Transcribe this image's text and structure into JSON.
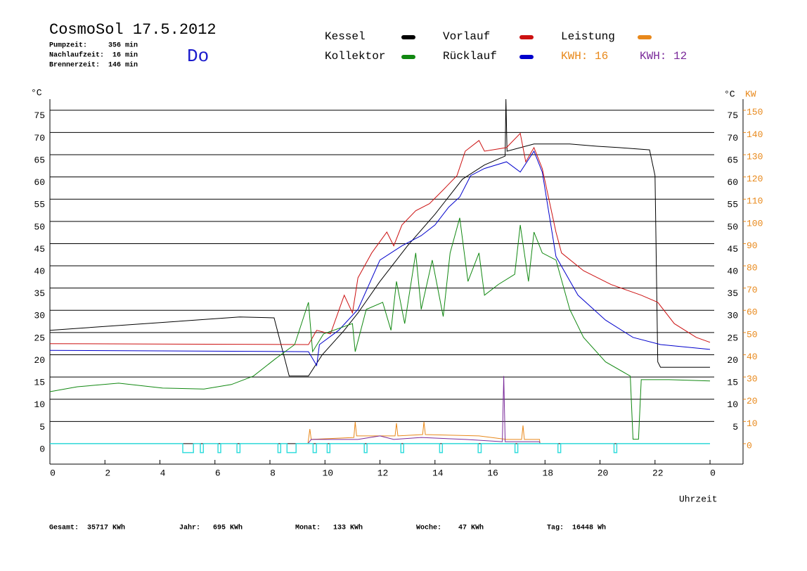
{
  "chart_data": {
    "type": "line",
    "title": "CosmoSol 17.5.2012",
    "info": [
      "Pumpzeit:     356 min",
      "Nachlaufzeit:  16 min",
      "Brennerzeit:  146 min"
    ],
    "day": "Do",
    "y_label": "°C",
    "y_right_label": "°C",
    "y2_label": "KW",
    "x_label": "Uhrzeit",
    "kwh_label": {
      "text": "KWH: 16",
      "color": "#e8881a"
    },
    "footer": [
      "Gesamt:  35717 KWh",
      "Jahr:   695 KWh",
      "Monat:   133 KWh",
      "Woche:    47 KWh",
      "Tag:  16448 Wh"
    ],
    "xlim": [
      0,
      25.2
    ],
    "xticks": [
      0,
      2,
      4,
      6,
      8,
      10,
      12,
      14,
      16,
      18,
      20,
      22,
      {
        "value": 24,
        "label": "0"
      }
    ],
    "ylim": [
      -4.6,
      77.5
    ],
    "yticks": [
      0,
      5,
      10,
      15,
      20,
      25,
      30,
      35,
      40,
      45,
      50,
      55,
      60,
      65,
      70,
      75
    ],
    "y_right_ticks": [
      5,
      10,
      15,
      20,
      25,
      30,
      35,
      40,
      45,
      50,
      55,
      60,
      65,
      70,
      75
    ],
    "y2lim": [
      -9.2,
      155
    ],
    "y2ticks": [
      0,
      10,
      20,
      30,
      40,
      50,
      60,
      70,
      80,
      90,
      100,
      110,
      120,
      130,
      140,
      150
    ],
    "grid": true,
    "series": [
      {
        "name": "Kessel",
        "color": "#000000",
        "x": [
          0,
          6.9,
          8.15,
          8.7,
          9.4,
          9.9,
          10.7,
          11.2,
          12,
          13,
          14,
          15,
          15.8,
          16.55,
          16.58,
          16.62,
          17.6,
          18.9,
          19.9,
          20.7,
          21.8,
          22,
          22.1,
          22.2,
          24
        ],
        "values": [
          25.5,
          28.5,
          28.3,
          15.2,
          15.2,
          20,
          25.5,
          29.4,
          36.5,
          44.5,
          51.6,
          59.5,
          62.7,
          64.7,
          77.5,
          65.8,
          67.4,
          67.4,
          66.9,
          66.6,
          66.1,
          60.3,
          18.4,
          17.2,
          17.2
        ]
      },
      {
        "name": "Vorlauf",
        "color": "#cc1111",
        "x": [
          0,
          9.4,
          9.7,
          10.2,
          10.7,
          11,
          11.2,
          11.7,
          12.25,
          12.5,
          12.8,
          13.3,
          13.8,
          14.3,
          14.8,
          15.1,
          15.6,
          15.8,
          16.6,
          17.1,
          17.3,
          17.6,
          17.9,
          18.4,
          18.6,
          19.4,
          20.4,
          21.5,
          22.1,
          22.7,
          23.5,
          24
        ],
        "values": [
          22.5,
          22.3,
          25.5,
          24.7,
          33.4,
          29.4,
          37.3,
          42.9,
          47.6,
          44.5,
          49.2,
          52.4,
          54,
          57.1,
          60.3,
          65.8,
          68.2,
          65.8,
          66.6,
          69.8,
          63.4,
          66.6,
          61.9,
          47.6,
          42.9,
          38.9,
          35.8,
          33.4,
          31.8,
          27,
          23.9,
          22.8
        ]
      },
      {
        "name": "Rücklauf",
        "color": "#0000cc",
        "x": [
          0,
          9.4,
          9.7,
          9.8,
          10.5,
          11.2,
          12,
          12.8,
          13.5,
          14,
          14.5,
          14.9,
          15.3,
          15.8,
          16.6,
          17.1,
          17.6,
          17.9,
          18.4,
          19.2,
          20.2,
          21.2,
          22.2,
          24
        ],
        "values": [
          21,
          20.7,
          17.6,
          22.3,
          25.5,
          30.2,
          41.3,
          44.5,
          46.8,
          49.2,
          53.2,
          55.5,
          60.3,
          61.9,
          63.4,
          61.1,
          65.8,
          61.1,
          42.1,
          33.4,
          27.8,
          23.9,
          22.3,
          21.2
        ]
      },
      {
        "name": "Kollektor",
        "color": "#118811",
        "x": [
          0,
          1,
          2.5,
          4.1,
          5.6,
          6.6,
          7.4,
          8.2,
          8.9,
          9.4,
          9.55,
          9.95,
          11,
          11.1,
          11.5,
          12.1,
          12.4,
          12.6,
          12.9,
          13.3,
          13.5,
          13.9,
          14.3,
          14.55,
          14.9,
          15.2,
          15.6,
          15.8,
          16.3,
          16.9,
          17.1,
          17.4,
          17.6,
          17.9,
          18.4,
          18.9,
          19.4,
          20.2,
          21.1,
          21.2,
          21.4,
          21.5,
          22.5,
          24
        ],
        "values": [
          11.7,
          12.8,
          13.6,
          12.5,
          12.3,
          13.3,
          15.2,
          19.1,
          22.3,
          31.8,
          20.7,
          24.7,
          27,
          20.7,
          30.2,
          31.8,
          25.5,
          36.5,
          27,
          42.9,
          30.2,
          41.3,
          28.6,
          42.9,
          50.8,
          36.5,
          42.9,
          33.4,
          35.8,
          38.1,
          49.2,
          36.5,
          47.6,
          42.9,
          41.3,
          30.2,
          23.9,
          18.4,
          15.2,
          1,
          1,
          14.4,
          14.4,
          14.1
        ]
      },
      {
        "name": "Leistung",
        "color": "#e8881a",
        "axis": "y2",
        "x": [
          9.38,
          9.45,
          9.5,
          11.05,
          11.1,
          11.15,
          12.55,
          12.6,
          12.65,
          13.55,
          13.6,
          13.65,
          15.6,
          16.6,
          17.15,
          17.2,
          17.25,
          17.8,
          17.82
        ],
        "values": [
          0,
          6.6,
          1.9,
          2.8,
          9.8,
          3.5,
          3.5,
          9.2,
          3.5,
          4.1,
          9.8,
          4.1,
          3.5,
          1.9,
          1.9,
          8.2,
          1.9,
          1.9,
          0
        ]
      },
      {
        "name": "KWH: 12",
        "color": "#7a2a9a",
        "axis": "y2",
        "x": [
          9.38,
          9.5,
          11.2,
          12,
          12.5,
          13.5,
          15.1,
          16.45,
          16.5,
          16.55,
          17.8,
          17.82
        ],
        "values": [
          0,
          1.9,
          1.9,
          3.5,
          1.9,
          2.8,
          1.9,
          0.9,
          30.4,
          0.9,
          0.9,
          0
        ]
      },
      {
        "color": "#33dddd",
        "x": [
          0,
          4.83,
          4.83,
          5.22,
          5.22,
          5.47,
          5.47,
          5.58,
          5.58,
          6.11,
          6.11,
          6.21,
          6.21,
          6.8,
          6.8,
          6.91,
          6.91,
          8.29,
          8.29,
          8.39,
          8.39,
          8.62,
          8.62,
          8.95,
          8.95,
          9.57,
          9.57,
          9.69,
          9.69,
          10.08,
          10.08,
          10.18,
          10.18,
          11.43,
          11.43,
          11.53,
          11.53,
          12.76,
          12.76,
          12.86,
          12.86,
          14.17,
          14.17,
          14.27,
          14.27,
          15.57,
          15.57,
          15.68,
          15.68,
          16.91,
          16.91,
          17.01,
          17.01,
          18.47,
          18.47,
          18.57,
          18.57,
          20.51,
          20.51,
          20.61,
          20.61,
          24
        ],
        "values": [
          0,
          0,
          -2,
          -2,
          0,
          0,
          -2,
          -2,
          0,
          0,
          -2,
          -2,
          0,
          0,
          -2,
          -2,
          0,
          0,
          -2,
          -2,
          0,
          0,
          -2,
          -2,
          0,
          0,
          -2,
          -2,
          0,
          0,
          -2,
          -2,
          0,
          0,
          -2,
          -2,
          0,
          0,
          -2,
          -2,
          0,
          0,
          -2,
          -2,
          0,
          0,
          -2,
          -2,
          0,
          0,
          -2,
          -2,
          0,
          0,
          -2,
          -2,
          0,
          0,
          -2,
          -2,
          0,
          0
        ]
      }
    ]
  }
}
